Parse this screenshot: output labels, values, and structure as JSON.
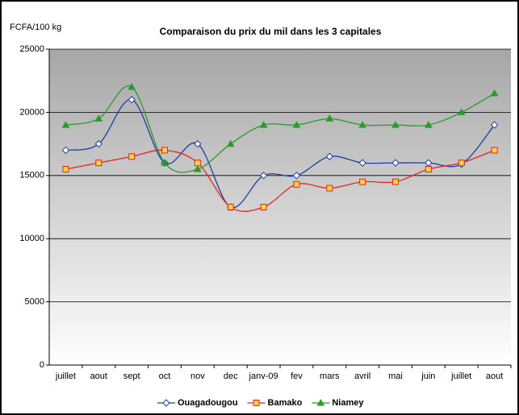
{
  "chart_data": {
    "type": "line",
    "title": "Comparaison du prix du mil dans les 3 capitales",
    "y_label": "FCFA/100 kg",
    "categories": [
      "juillet",
      "aout",
      "sept",
      "oct",
      "nov",
      "dec",
      "janv-09",
      "fev",
      "mars",
      "avril",
      "mai",
      "juin",
      "juillet",
      "aout"
    ],
    "series": [
      {
        "name": "Ouagadougou",
        "color": "#1f3d9e",
        "marker": "diamond",
        "marker_fill": "#ffffff",
        "values": [
          17000,
          17500,
          21000,
          16000,
          17500,
          12500,
          15000,
          15000,
          16500,
          16000,
          16000,
          16000,
          15900,
          19000
        ]
      },
      {
        "name": "Bamako",
        "color": "#e4261c",
        "marker": "square",
        "marker_fill": "#ffd24a",
        "values": [
          15500,
          16000,
          16500,
          17000,
          16000,
          12500,
          12500,
          14300,
          14000,
          14500,
          14500,
          15500,
          16000,
          17000
        ]
      },
      {
        "name": "Niamey",
        "color": "#2a9a2a",
        "marker": "triangle",
        "marker_fill": "#2a9a2a",
        "values": [
          19000,
          19500,
          22000,
          16000,
          15500,
          17500,
          19000,
          19000,
          19500,
          19000,
          19000,
          19000,
          20000,
          21500
        ]
      }
    ],
    "ylim": [
      0,
      25000
    ],
    "yticks": [
      0,
      5000,
      10000,
      15000,
      20000,
      25000
    ],
    "grid": true,
    "legend": "bottom",
    "smooth": true
  }
}
